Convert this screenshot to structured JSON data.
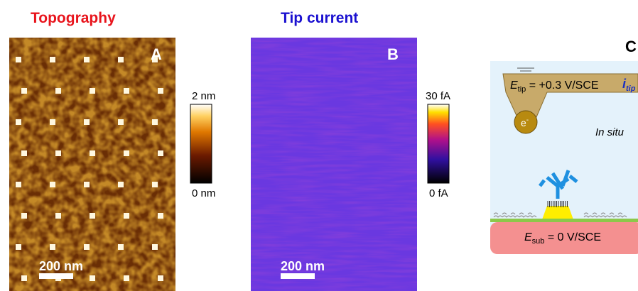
{
  "panel_a": {
    "title": "Topography",
    "label": "A",
    "scale_bar": "200 nm",
    "colorbar_max": "2 nm",
    "colorbar_min": "0 nm"
  },
  "panel_b": {
    "title": "Tip current",
    "label": "B",
    "scale_bar": "200 nm",
    "colorbar_max": "30 fA",
    "colorbar_min": "0 fA"
  },
  "panel_c": {
    "label": "C",
    "tip_symbol": "E",
    "tip_subscript": "tip",
    "tip_potential": " = +0.3 V/SCE",
    "current_symbol": "i",
    "current_subscript": "tip",
    "electron": "e",
    "electron_charge": "-",
    "in_situ": "In situ",
    "sub_symbol": "E",
    "sub_subscript": "sub",
    "sub_potential": " = 0 V/SCE"
  }
}
